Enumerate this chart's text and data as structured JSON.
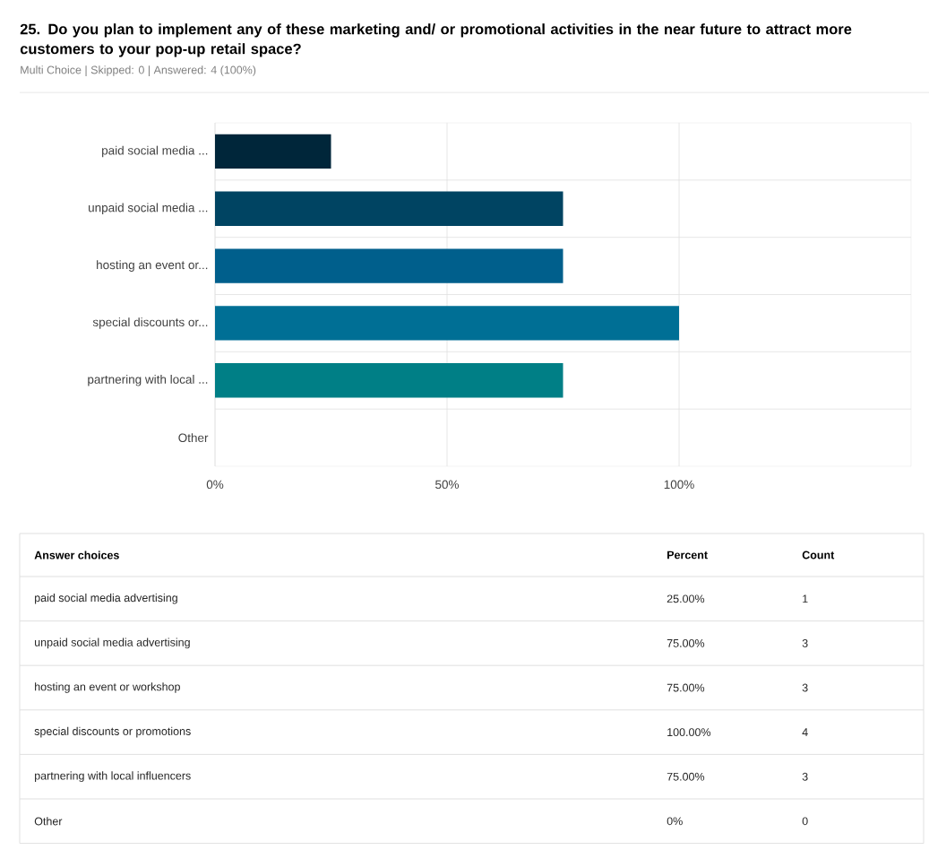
{
  "chart_data": [
    {
      "type": "bar",
      "orientation": "horizontal",
      "title": "25. Do you plan to implement any of these marketing and/ or promotional activities in the near future to attract more customers to your pop-up retail space?",
      "subtitle": "Multi Choice | Skipped: 0 | Answered: 4 (100%)",
      "categories": [
        "paid social media ...",
        "unpaid social media ...",
        "hosting an event or...",
        "special discounts or...",
        "partnering with local ...",
        "Other"
      ],
      "values": [
        25,
        75,
        75,
        100,
        75,
        0
      ],
      "colors": [
        "#00263a",
        "#004462",
        "#005f8c",
        "#006f95",
        "#007f86",
        "#00808a"
      ],
      "xlim": [
        0,
        150
      ],
      "xticks": [
        {
          "value": 0,
          "label": "0%"
        },
        {
          "value": 50,
          "label": "50%"
        },
        {
          "value": 100,
          "label": "100%"
        }
      ],
      "grid": true
    },
    {
      "type": "other",
      "legend_title": "Answer choices",
      "data_labels": true,
      "categories": [
        "paid social media advertising",
        "unpaid social media advertising",
        "hosting an event or workshop",
        "special discounts or promotions",
        "partnering with local influencers",
        "Other"
      ],
      "series": [
        {
          "name": "Percent",
          "values": [
            25,
            75,
            75,
            100,
            75,
            0
          ],
          "value_labels": [
            "25.00%",
            "75.00%",
            "75.00%",
            "100.00%",
            "75.00%",
            "0%"
          ]
        },
        {
          "name": "Count",
          "values": [
            1,
            3,
            3,
            4,
            3,
            0
          ]
        }
      ]
    }
  ]
}
